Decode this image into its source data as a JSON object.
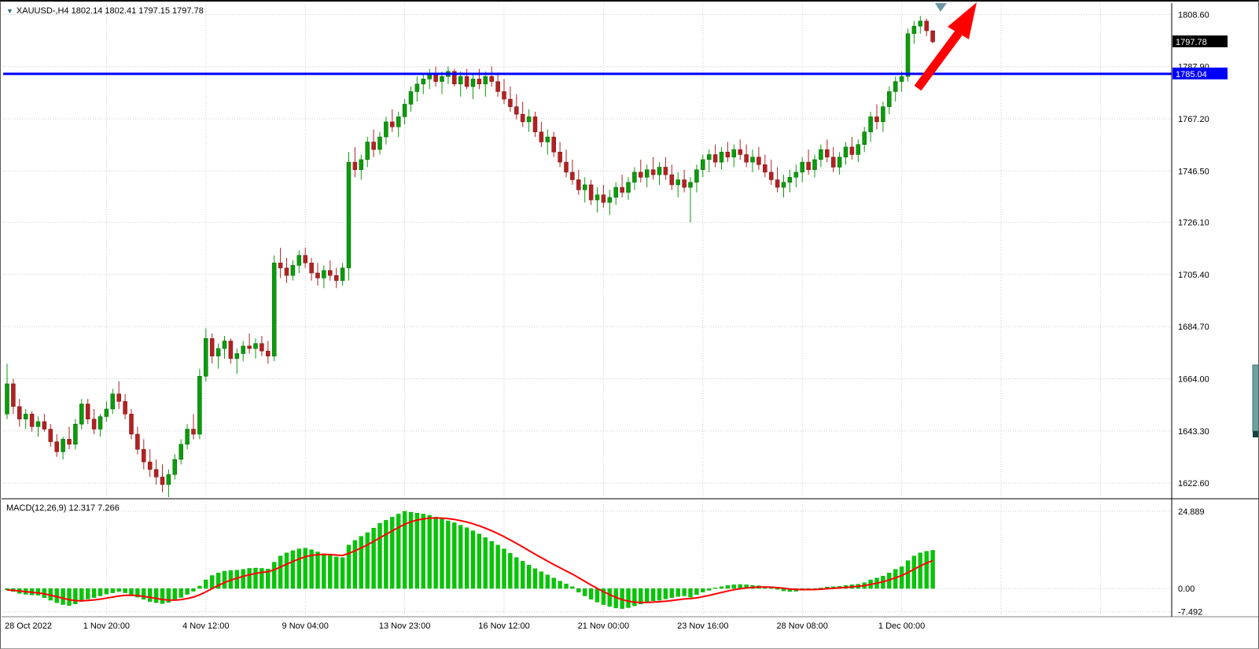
{
  "window": {
    "symbol_ohlc": "XAUUSD-,H4 1802.14 1802.41 1797.15 1797.78",
    "macd_label": "MACD(12,26,9) 12.317 7.266"
  },
  "price_tags": {
    "current": "1797.78",
    "hline": "1785.04"
  },
  "colors": {
    "bull": "#0C9B0C",
    "bear": "#B22222",
    "bull_edge": "#006400",
    "bear_edge": "#7A1010",
    "grid": "#CDCDCD",
    "hline": "#0000FF",
    "arrow": "#FF0000",
    "macd_hist": "#00C800",
    "macd_hist_edge": "#009000",
    "macd_signal": "#FF0000",
    "price_tag_bg": "#000000",
    "hline_tag_bg": "#0000FF",
    "axis_text": "#000000",
    "separator": "#808080",
    "anchor": "#6A98A8",
    "scrollbar": "#6FA0A0",
    "scrollbar_edge": "#3F6F6F",
    "scrollbar_end": "#16413F"
  },
  "chart_data": {
    "type": "candlestick",
    "symbol": "XAUUSD-",
    "timeframe": "H4",
    "title": "XAUUSD- H4 with MACD(12,26,9)",
    "last_ohlc": {
      "open": 1802.14,
      "high": 1802.41,
      "low": 1797.15,
      "close": 1797.78
    },
    "price_axis_labels": [
      "1808.60",
      "1787.90",
      "1767.20",
      "1746.50",
      "1726.10",
      "1705.40",
      "1684.70",
      "1664.00",
      "1643.30",
      "1622.60"
    ],
    "price_ylim": [
      1617.0,
      1812.8
    ],
    "grid": true,
    "candles_per_gridline": 16,
    "time_labels": [
      {
        "label": "28 Oct 2022",
        "index": 0
      },
      {
        "label": "1 Nov 20:00",
        "index": 16
      },
      {
        "label": "4 Nov 12:00",
        "index": 32
      },
      {
        "label": "9 Nov 04:00",
        "index": 48
      },
      {
        "label": "13 Nov 23:00",
        "index": 64
      },
      {
        "label": "16 Nov 12:00",
        "index": 80
      },
      {
        "label": "21 Nov 00:00",
        "index": 96
      },
      {
        "label": "23 Nov 16:00",
        "index": 112
      },
      {
        "label": "28 Nov 08:00",
        "index": 128
      },
      {
        "label": "1 Dec 00:00",
        "index": 144
      }
    ],
    "hline": {
      "price": 1785.04,
      "label": "1785.04",
      "style": "solid",
      "width": 3
    },
    "annotation_arrow": {
      "direction": "up-right",
      "meaning": "breakout above 1785.04"
    },
    "ohlc": [
      [
        1650,
        1670,
        1648,
        1662
      ],
      [
        1662,
        1664,
        1650,
        1653
      ],
      [
        1653,
        1656,
        1645,
        1648
      ],
      [
        1648,
        1652,
        1644,
        1650
      ],
      [
        1650,
        1651,
        1643,
        1645
      ],
      [
        1645,
        1649,
        1641,
        1647
      ],
      [
        1647,
        1650,
        1643,
        1644
      ],
      [
        1644,
        1646,
        1637,
        1639
      ],
      [
        1639,
        1642,
        1633,
        1635
      ],
      [
        1635,
        1641,
        1632,
        1640
      ],
      [
        1640,
        1645,
        1636,
        1638
      ],
      [
        1638,
        1648,
        1636,
        1646
      ],
      [
        1646,
        1656,
        1644,
        1654
      ],
      [
        1654,
        1656,
        1646,
        1648
      ],
      [
        1648,
        1652,
        1642,
        1644
      ],
      [
        1644,
        1650,
        1641,
        1649
      ],
      [
        1649,
        1655,
        1647,
        1652
      ],
      [
        1652,
        1660,
        1650,
        1658
      ],
      [
        1658,
        1663,
        1652,
        1655
      ],
      [
        1655,
        1658,
        1648,
        1650
      ],
      [
        1650,
        1652,
        1640,
        1642
      ],
      [
        1642,
        1645,
        1634,
        1636
      ],
      [
        1636,
        1640,
        1628,
        1631
      ],
      [
        1631,
        1636,
        1625,
        1628
      ],
      [
        1628,
        1632,
        1622,
        1625
      ],
      [
        1625,
        1630,
        1619,
        1622
      ],
      [
        1622,
        1628,
        1617,
        1626
      ],
      [
        1626,
        1634,
        1624,
        1632
      ],
      [
        1632,
        1640,
        1630,
        1638
      ],
      [
        1638,
        1646,
        1636,
        1644
      ],
      [
        1644,
        1650,
        1640,
        1642
      ],
      [
        1642,
        1668,
        1640,
        1665
      ],
      [
        1665,
        1684,
        1663,
        1680
      ],
      [
        1680,
        1682,
        1670,
        1673
      ],
      [
        1673,
        1678,
        1668,
        1676
      ],
      [
        1676,
        1681,
        1672,
        1679
      ],
      [
        1679,
        1680,
        1670,
        1672
      ],
      [
        1672,
        1676,
        1666,
        1674
      ],
      [
        1674,
        1679,
        1671,
        1677
      ],
      [
        1677,
        1682,
        1674,
        1676
      ],
      [
        1676,
        1680,
        1672,
        1678
      ],
      [
        1678,
        1681,
        1673,
        1675
      ],
      [
        1675,
        1679,
        1670,
        1673
      ],
      [
        1673,
        1713,
        1671,
        1710
      ],
      [
        1710,
        1716,
        1704,
        1708
      ],
      [
        1708,
        1712,
        1702,
        1705
      ],
      [
        1705,
        1711,
        1703,
        1709
      ],
      [
        1709,
        1715,
        1706,
        1713
      ],
      [
        1713,
        1716,
        1708,
        1710
      ],
      [
        1710,
        1712,
        1703,
        1706
      ],
      [
        1706,
        1710,
        1701,
        1704
      ],
      [
        1704,
        1709,
        1700,
        1707
      ],
      [
        1707,
        1711,
        1703,
        1705
      ],
      [
        1705,
        1708,
        1700,
        1703
      ],
      [
        1703,
        1710,
        1701,
        1708
      ],
      [
        1708,
        1754,
        1703,
        1750
      ],
      [
        1750,
        1756,
        1744,
        1747
      ],
      [
        1747,
        1753,
        1743,
        1751
      ],
      [
        1751,
        1760,
        1748,
        1758
      ],
      [
        1758,
        1763,
        1752,
        1755
      ],
      [
        1755,
        1762,
        1753,
        1760
      ],
      [
        1760,
        1768,
        1757,
        1766
      ],
      [
        1766,
        1771,
        1762,
        1764
      ],
      [
        1764,
        1770,
        1760,
        1768
      ],
      [
        1768,
        1775,
        1765,
        1773
      ],
      [
        1773,
        1780,
        1770,
        1778
      ],
      [
        1778,
        1784,
        1774,
        1781
      ],
      [
        1781,
        1785,
        1777,
        1783
      ],
      [
        1783,
        1787,
        1779,
        1785
      ],
      [
        1785,
        1788,
        1780,
        1782
      ],
      [
        1782,
        1786,
        1777,
        1784
      ],
      [
        1784,
        1788,
        1781,
        1786
      ],
      [
        1786,
        1787,
        1780,
        1781
      ],
      [
        1781,
        1786,
        1776,
        1784
      ],
      [
        1784,
        1787,
        1779,
        1780
      ],
      [
        1780,
        1785,
        1775,
        1783
      ],
      [
        1783,
        1787,
        1779,
        1781
      ],
      [
        1781,
        1786,
        1776,
        1784
      ],
      [
        1784,
        1788,
        1780,
        1782
      ],
      [
        1782,
        1785,
        1776,
        1778
      ],
      [
        1778,
        1783,
        1773,
        1775
      ],
      [
        1775,
        1780,
        1770,
        1772
      ],
      [
        1772,
        1777,
        1767,
        1769
      ],
      [
        1769,
        1774,
        1764,
        1766
      ],
      [
        1766,
        1771,
        1762,
        1768
      ],
      [
        1768,
        1770,
        1760,
        1762
      ],
      [
        1762,
        1766,
        1756,
        1758
      ],
      [
        1758,
        1763,
        1753,
        1760
      ],
      [
        1760,
        1762,
        1752,
        1754
      ],
      [
        1754,
        1758,
        1748,
        1750
      ],
      [
        1750,
        1755,
        1744,
        1746
      ],
      [
        1746,
        1751,
        1741,
        1743
      ],
      [
        1743,
        1747,
        1737,
        1739
      ],
      [
        1739,
        1744,
        1734,
        1741
      ],
      [
        1741,
        1743,
        1733,
        1735
      ],
      [
        1735,
        1740,
        1730,
        1737
      ],
      [
        1737,
        1741,
        1732,
        1734
      ],
      [
        1734,
        1739,
        1729,
        1736
      ],
      [
        1736,
        1742,
        1733,
        1740
      ],
      [
        1740,
        1745,
        1736,
        1738
      ],
      [
        1738,
        1744,
        1735,
        1742
      ],
      [
        1742,
        1748,
        1739,
        1746
      ],
      [
        1746,
        1751,
        1742,
        1744
      ],
      [
        1744,
        1749,
        1740,
        1747
      ],
      [
        1747,
        1752,
        1743,
        1745
      ],
      [
        1745,
        1750,
        1741,
        1748
      ],
      [
        1748,
        1752,
        1743,
        1745
      ],
      [
        1745,
        1749,
        1739,
        1741
      ],
      [
        1741,
        1746,
        1736,
        1743
      ],
      [
        1743,
        1747,
        1738,
        1740
      ],
      [
        1740,
        1744,
        1726,
        1742
      ],
      [
        1742,
        1749,
        1738,
        1747
      ],
      [
        1747,
        1753,
        1744,
        1751
      ],
      [
        1751,
        1755,
        1746,
        1753
      ],
      [
        1753,
        1757,
        1748,
        1750
      ],
      [
        1750,
        1756,
        1747,
        1754
      ],
      [
        1754,
        1758,
        1750,
        1752
      ],
      [
        1752,
        1757,
        1748,
        1755
      ],
      [
        1755,
        1759,
        1751,
        1753
      ],
      [
        1753,
        1757,
        1748,
        1750
      ],
      [
        1750,
        1755,
        1746,
        1752
      ],
      [
        1752,
        1756,
        1747,
        1749
      ],
      [
        1749,
        1753,
        1744,
        1746
      ],
      [
        1746,
        1751,
        1741,
        1743
      ],
      [
        1743,
        1748,
        1738,
        1740
      ],
      [
        1740,
        1745,
        1736,
        1742
      ],
      [
        1742,
        1747,
        1738,
        1744
      ],
      [
        1744,
        1749,
        1740,
        1746
      ],
      [
        1746,
        1752,
        1742,
        1750
      ],
      [
        1750,
        1755,
        1745,
        1747
      ],
      [
        1747,
        1753,
        1744,
        1751
      ],
      [
        1751,
        1757,
        1748,
        1755
      ],
      [
        1755,
        1759,
        1750,
        1752
      ],
      [
        1752,
        1756,
        1746,
        1748
      ],
      [
        1748,
        1754,
        1745,
        1752
      ],
      [
        1752,
        1758,
        1749,
        1756
      ],
      [
        1756,
        1760,
        1751,
        1753
      ],
      [
        1753,
        1759,
        1750,
        1757
      ],
      [
        1757,
        1764,
        1754,
        1762
      ],
      [
        1762,
        1770,
        1758,
        1768
      ],
      [
        1768,
        1773,
        1763,
        1766
      ],
      [
        1766,
        1774,
        1762,
        1772
      ],
      [
        1772,
        1780,
        1769,
        1778
      ],
      [
        1778,
        1784,
        1774,
        1782
      ],
      [
        1782,
        1786,
        1778,
        1784
      ],
      [
        1784,
        1803,
        1782,
        1801
      ],
      [
        1801,
        1806,
        1797,
        1804
      ],
      [
        1804,
        1808,
        1801,
        1806
      ],
      [
        1806,
        1807,
        1800,
        1802.14
      ],
      [
        1802.14,
        1802.41,
        1797.15,
        1797.78
      ]
    ],
    "macd": {
      "type": "bar",
      "params": "12,26,9",
      "main_current": 12.317,
      "signal_current": 7.266,
      "axis_labels": [
        "24.889",
        "0.00",
        "-7.492"
      ],
      "ylim": [
        -8.6,
        27.9
      ],
      "signal_ema_period": 9,
      "values": [
        -0.5,
        -1.0,
        -1.6,
        -1.9,
        -2.1,
        -2.2,
        -3.0,
        -3.8,
        -4.6,
        -5.2,
        -5.5,
        -5.0,
        -4.2,
        -3.4,
        -3.0,
        -2.4,
        -1.8,
        -1.4,
        -1.0,
        -1.4,
        -2.0,
        -2.8,
        -3.5,
        -4.2,
        -4.6,
        -4.9,
        -4.5,
        -3.8,
        -2.9,
        -1.9,
        -0.9,
        0.8,
        2.8,
        4.2,
        5.0,
        5.6,
        5.8,
        5.9,
        6.2,
        6.5,
        6.6,
        6.5,
        6.3,
        8.5,
        10.5,
        11.5,
        12.2,
        12.8,
        13.0,
        12.5,
        11.8,
        11.2,
        10.8,
        10.2,
        10.0,
        14.0,
        15.5,
        16.8,
        18.0,
        19.5,
        21.0,
        22.0,
        23.0,
        24.0,
        24.889,
        24.6,
        24.3,
        24.0,
        23.6,
        23.0,
        22.4,
        21.8,
        21.2,
        20.4,
        19.6,
        18.6,
        17.6,
        16.4,
        15.2,
        14.0,
        12.8,
        11.4,
        10.0,
        8.8,
        7.6,
        6.4,
        5.4,
        4.4,
        3.4,
        2.4,
        1.5,
        0.6,
        -1.2,
        -2.4,
        -3.5,
        -4.4,
        -5.2,
        -5.8,
        -6.3,
        -6.5,
        -6.2,
        -5.6,
        -5.0,
        -4.4,
        -4.0,
        -3.8,
        -3.4,
        -3.0,
        -2.6,
        -2.4,
        -2.8,
        -2.0,
        -1.2,
        -0.6,
        0.2,
        0.6,
        1.0,
        1.2,
        1.3,
        1.2,
        1.0,
        0.9,
        0.6,
        0.2,
        -0.3,
        -0.8,
        -1.0,
        -0.9,
        -0.6,
        -0.4,
        -0.2,
        0.2,
        0.5,
        0.6,
        0.7,
        1.0,
        1.2,
        1.4,
        1.9,
        2.8,
        3.4,
        4.0,
        5.0,
        6.2,
        7.0,
        9.0,
        10.5,
        11.5,
        12.0,
        12.317
      ]
    }
  }
}
